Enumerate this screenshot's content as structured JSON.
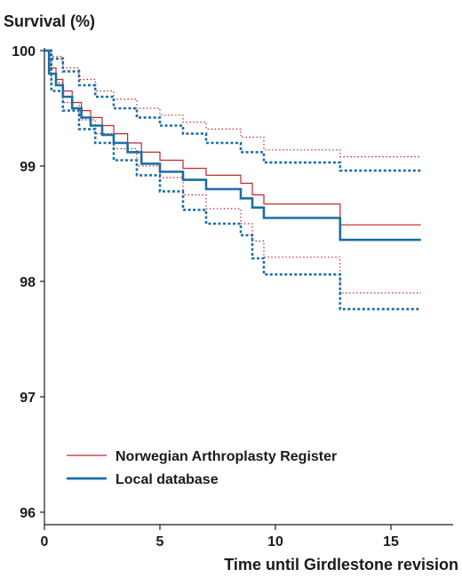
{
  "chart_data": {
    "type": "line",
    "ylabel": "Survival (%)",
    "xlabel": "Time until Girdlestone revision",
    "xlim": [
      0,
      18
    ],
    "ylim": [
      96,
      100
    ],
    "xticks": [
      0,
      5,
      10,
      15
    ],
    "yticks": [
      96,
      97,
      98,
      99,
      100
    ],
    "legend_position": "bottom-left",
    "series": [
      {
        "name": "Norwegian Arthroplasty Register",
        "color": "#c0272d",
        "style": "solid",
        "x": [
          0,
          0.2,
          0.5,
          0.8,
          1.2,
          1.6,
          2.0,
          2.5,
          3.0,
          3.6,
          4.2,
          5.0,
          6.0,
          7.0,
          8.5,
          9.0,
          9.5,
          12.8,
          16.3
        ],
        "y": [
          100,
          99.85,
          99.75,
          99.65,
          99.55,
          99.48,
          99.42,
          99.35,
          99.28,
          99.2,
          99.12,
          99.05,
          98.98,
          98.92,
          98.85,
          98.75,
          98.67,
          98.49,
          98.49
        ]
      },
      {
        "name": "Local database",
        "color": "#1c6ea4",
        "style": "solid",
        "x": [
          0,
          0.2,
          0.5,
          0.8,
          1.2,
          1.6,
          2.0,
          2.5,
          3.0,
          3.6,
          4.2,
          5.0,
          6.0,
          7.0,
          8.5,
          9.0,
          9.5,
          12.8,
          16.3
        ],
        "y": [
          100,
          99.8,
          99.7,
          99.6,
          99.5,
          99.42,
          99.35,
          99.27,
          99.2,
          99.12,
          99.02,
          98.95,
          98.88,
          98.8,
          98.72,
          98.64,
          98.55,
          98.36,
          98.36
        ]
      },
      {
        "color": "#c0272d",
        "style": "dotted",
        "x": [
          0,
          0.3,
          0.8,
          1.5,
          2.2,
          3.0,
          4.0,
          5.0,
          6.0,
          7.0,
          8.5,
          9.5,
          12.8,
          16.3
        ],
        "y": [
          100,
          99.95,
          99.85,
          99.75,
          99.65,
          99.58,
          99.5,
          99.44,
          99.38,
          99.32,
          99.25,
          99.14,
          99.08,
          99.08
        ]
      },
      {
        "color": "#c0272d",
        "style": "dotted",
        "x": [
          0,
          0.3,
          0.8,
          1.5,
          2.2,
          3.0,
          4.0,
          5.0,
          6.0,
          7.0,
          8.5,
          9.0,
          9.5,
          12.8,
          16.3
        ],
        "y": [
          100,
          99.72,
          99.55,
          99.4,
          99.28,
          99.15,
          99.0,
          98.9,
          98.75,
          98.63,
          98.5,
          98.35,
          98.21,
          97.9,
          97.9
        ]
      },
      {
        "color": "#1c6ea4",
        "style": "dotted",
        "x": [
          0,
          0.3,
          0.8,
          1.5,
          2.2,
          3.0,
          4.0,
          5.0,
          6.0,
          7.0,
          8.5,
          9.5,
          12.8,
          16.3
        ],
        "y": [
          100,
          99.93,
          99.82,
          99.7,
          99.6,
          99.5,
          99.42,
          99.35,
          99.28,
          99.2,
          99.12,
          99.03,
          98.96,
          98.96
        ]
      },
      {
        "color": "#1c6ea4",
        "style": "dotted",
        "x": [
          0,
          0.3,
          0.8,
          1.5,
          2.2,
          3.0,
          4.0,
          5.0,
          6.0,
          7.0,
          8.5,
          9.0,
          9.5,
          12.8,
          16.3
        ],
        "y": [
          100,
          99.65,
          99.48,
          99.32,
          99.2,
          99.05,
          98.92,
          98.78,
          98.62,
          98.5,
          98.4,
          98.2,
          98.06,
          97.76,
          97.76
        ]
      }
    ]
  }
}
